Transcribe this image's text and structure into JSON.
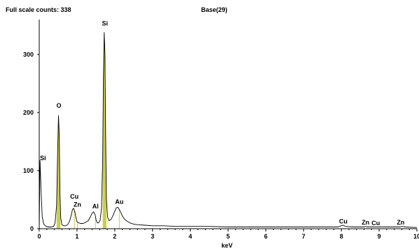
{
  "header": {
    "full_scale_label": "Full scale counts: 338",
    "spectrum_name": "Base(29)"
  },
  "chart_data": {
    "type": "line",
    "title": "Base(29)",
    "xlabel": "keV",
    "ylabel": "",
    "xlim": [
      0,
      10
    ],
    "ylim": [
      0,
      360
    ],
    "x_ticks": [
      0,
      1,
      2,
      3,
      4,
      5,
      6,
      7,
      8,
      9,
      10
    ],
    "y_ticks": [
      0,
      100,
      200,
      300
    ],
    "grid": false,
    "colors": {
      "line": "#000000",
      "peak_fill": "#c8d24a",
      "marker": "#d4c34a",
      "axis": "#000000"
    },
    "spectrum": {
      "x": [
        0.0,
        0.02,
        0.05,
        0.08,
        0.12,
        0.18,
        0.25,
        0.32,
        0.38,
        0.42,
        0.46,
        0.49,
        0.51,
        0.53,
        0.55,
        0.57,
        0.6,
        0.65,
        0.7,
        0.75,
        0.8,
        0.85,
        0.88,
        0.91,
        0.94,
        0.97,
        1.0,
        1.05,
        1.1,
        1.15,
        1.2,
        1.25,
        1.3,
        1.35,
        1.4,
        1.44,
        1.48,
        1.51,
        1.54,
        1.57,
        1.61,
        1.65,
        1.68,
        1.7,
        1.72,
        1.74,
        1.76,
        1.78,
        1.81,
        1.85,
        1.9,
        1.95,
        2.0,
        2.04,
        2.08,
        2.12,
        2.16,
        2.2,
        2.25,
        2.3,
        2.35,
        2.4,
        2.5,
        2.6,
        2.8,
        3.0,
        3.3,
        3.6,
        4.0,
        4.5,
        5.0,
        5.5,
        6.0,
        6.5,
        7.0,
        7.5,
        7.9,
        8.0,
        8.05,
        8.1,
        8.3,
        8.6,
        8.64,
        8.68,
        8.8,
        9.0,
        9.4,
        9.55,
        9.6,
        9.7,
        10.0
      ],
      "y": [
        0,
        118,
        62,
        20,
        8,
        4,
        3,
        3,
        4,
        10,
        40,
        140,
        195,
        160,
        60,
        18,
        7,
        5,
        5,
        7,
        12,
        24,
        33,
        35,
        30,
        20,
        12,
        10,
        9,
        9,
        10,
        12,
        14,
        20,
        27,
        29,
        24,
        14,
        10,
        10,
        14,
        35,
        120,
        260,
        338,
        300,
        150,
        50,
        20,
        14,
        16,
        22,
        30,
        36,
        37,
        33,
        28,
        22,
        17,
        14,
        12,
        10,
        8,
        7,
        6,
        5,
        5,
        4,
        4,
        4,
        3,
        3,
        3,
        3,
        3,
        3,
        3,
        5,
        6,
        4,
        3,
        3,
        4,
        3,
        3,
        3,
        3,
        3,
        4,
        3,
        2
      ]
    },
    "peak_labels": [
      {
        "text": "Si",
        "x": 0.1,
        "y": 118
      },
      {
        "text": "O",
        "x": 0.52,
        "y": 208
      },
      {
        "text": "Cu",
        "x": 0.93,
        "y": 52
      },
      {
        "text": "Zn",
        "x": 1.01,
        "y": 38
      },
      {
        "text": "Al",
        "x": 1.49,
        "y": 35
      },
      {
        "text": "Si",
        "x": 1.74,
        "y": 350
      },
      {
        "text": "Au",
        "x": 2.12,
        "y": 43
      },
      {
        "text": "Cu",
        "x": 8.05,
        "y": 9
      },
      {
        "text": "Zn",
        "x": 8.64,
        "y": 7
      },
      {
        "text": "Cu",
        "x": 8.91,
        "y": 6
      },
      {
        "text": "Zn",
        "x": 9.57,
        "y": 7
      }
    ],
    "markers": [
      0.52,
      0.93,
      1.01,
      1.49,
      1.74,
      2.12
    ],
    "shaded_peaks": [
      {
        "from": 0.46,
        "to": 0.56
      },
      {
        "from": 1.68,
        "to": 1.78
      }
    ]
  }
}
